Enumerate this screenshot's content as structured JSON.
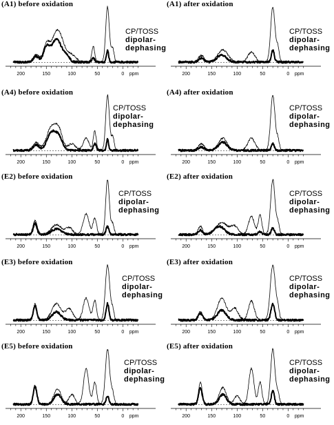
{
  "legend": {
    "line1": "CP/TOSS",
    "line2": "dipolar-",
    "line3": "dephasing"
  },
  "ppm_label": "ppm",
  "x_ticks": [
    200,
    150,
    100,
    50,
    0
  ],
  "chart_data": [
    {
      "type": "line",
      "title": "(A1) before oxidation",
      "x_axis": "ppm",
      "xlim": [
        230,
        -40
      ],
      "series": [
        {
          "peaks": [
            [
              170,
              0.13,
              9
            ],
            [
              128,
              0.58,
              16
            ],
            [
              150,
              0.28,
              8
            ],
            [
              100,
              0.12,
              12
            ],
            [
              58,
              0.28,
              4
            ],
            [
              30,
              1.0,
              5
            ],
            [
              20,
              0.25,
              4
            ]
          ]
        },
        {
          "peaks": [
            [
              170,
              0.1,
              8
            ],
            [
              130,
              0.42,
              14
            ],
            [
              150,
              0.25,
              8
            ],
            [
              58,
              0.07,
              4
            ],
            [
              30,
              0.22,
              3
            ],
            [
              110,
              0.1,
              8
            ]
          ]
        }
      ]
    },
    {
      "type": "line",
      "title": "(A1) after oxidation",
      "x_axis": "ppm",
      "xlim": [
        230,
        -40
      ],
      "series": [
        {
          "peaks": [
            [
              170,
              0.12,
              8
            ],
            [
              128,
              0.22,
              14
            ],
            [
              72,
              0.18,
              10
            ],
            [
              30,
              1.0,
              6
            ],
            [
              20,
              0.25,
              4
            ]
          ]
        },
        {
          "peaks": [
            [
              170,
              0.07,
              7
            ],
            [
              130,
              0.13,
              13
            ],
            [
              30,
              0.22,
              4
            ]
          ]
        }
      ]
    },
    {
      "type": "line",
      "title": "(A4) before oxidation",
      "x_axis": "ppm",
      "xlim": [
        230,
        -40
      ],
      "series": [
        {
          "peaks": [
            [
              170,
              0.14,
              9
            ],
            [
              140,
              0.42,
              13
            ],
            [
              125,
              0.32,
              10
            ],
            [
              100,
              0.12,
              10
            ],
            [
              72,
              0.22,
              8
            ],
            [
              55,
              0.35,
              4
            ],
            [
              30,
              1.0,
              5
            ],
            [
              20,
              0.25,
              4
            ]
          ]
        },
        {
          "peaks": [
            [
              170,
              0.1,
              8
            ],
            [
              140,
              0.32,
              12
            ],
            [
              125,
              0.22,
              10
            ],
            [
              55,
              0.12,
              4
            ],
            [
              30,
              0.2,
              3
            ]
          ]
        }
      ]
    },
    {
      "type": "line",
      "title": "(A4) after oxidation",
      "x_axis": "ppm",
      "xlim": [
        230,
        -40
      ],
      "series": [
        {
          "peaks": [
            [
              170,
              0.12,
              8
            ],
            [
              128,
              0.22,
              12
            ],
            [
              72,
              0.22,
              10
            ],
            [
              30,
              1.0,
              6
            ],
            [
              20,
              0.2,
              4
            ]
          ]
        },
        {
          "peaks": [
            [
              170,
              0.06,
              8
            ],
            [
              128,
              0.15,
              12
            ],
            [
              30,
              0.12,
              4
            ]
          ]
        }
      ]
    },
    {
      "type": "line",
      "title": "(E2) before oxidation",
      "x_axis": "ppm",
      "xlim": [
        230,
        -40
      ],
      "series": [
        {
          "peaks": [
            [
              172,
              0.25,
              6
            ],
            [
              130,
              0.18,
              14
            ],
            [
              105,
              0.12,
              10
            ],
            [
              72,
              0.38,
              8
            ],
            [
              55,
              0.3,
              5
            ],
            [
              30,
              1.0,
              5
            ],
            [
              20,
              0.2,
              4
            ]
          ]
        },
        {
          "peaks": [
            [
              172,
              0.2,
              5
            ],
            [
              130,
              0.1,
              14
            ],
            [
              30,
              0.15,
              4
            ]
          ]
        }
      ]
    },
    {
      "type": "line",
      "title": "(E2) after oxidation",
      "x_axis": "ppm",
      "xlim": [
        230,
        -40
      ],
      "series": [
        {
          "peaks": [
            [
              172,
              0.15,
              6
            ],
            [
              130,
              0.22,
              16
            ],
            [
              105,
              0.15,
              10
            ],
            [
              72,
              0.33,
              8
            ],
            [
              55,
              0.36,
              5
            ],
            [
              30,
              1.0,
              6
            ],
            [
              20,
              0.2,
              4
            ]
          ]
        },
        {
          "peaks": [
            [
              172,
              0.08,
              6
            ],
            [
              135,
              0.15,
              14
            ],
            [
              55,
              0.05,
              5
            ],
            [
              30,
              0.12,
              4
            ]
          ]
        }
      ]
    },
    {
      "type": "line",
      "title": "(E3) before oxidation",
      "x_axis": "ppm",
      "xlim": [
        230,
        -40
      ],
      "series": [
        {
          "peaks": [
            [
              172,
              0.3,
              5
            ],
            [
              130,
              0.3,
              13
            ],
            [
              105,
              0.2,
              10
            ],
            [
              72,
              0.4,
              8
            ],
            [
              55,
              0.35,
              5
            ],
            [
              30,
              1.0,
              6
            ],
            [
              20,
              0.2,
              4
            ]
          ]
        },
        {
          "peaks": [
            [
              172,
              0.25,
              5
            ],
            [
              130,
              0.15,
              12
            ],
            [
              30,
              0.3,
              4
            ]
          ]
        }
      ]
    },
    {
      "type": "line",
      "title": "(E3) after oxidation",
      "x_axis": "ppm",
      "xlim": [
        230,
        -40
      ],
      "series": [
        {
          "peaks": [
            [
              172,
              0.15,
              6
            ],
            [
              130,
              0.4,
              12
            ],
            [
              105,
              0.22,
              10
            ],
            [
              72,
              0.35,
              8
            ],
            [
              30,
              1.0,
              7
            ],
            [
              20,
              0.2,
              4
            ]
          ]
        },
        {
          "peaks": [
            [
              172,
              0.12,
              6
            ],
            [
              130,
              0.18,
              12
            ],
            [
              30,
              0.3,
              5
            ]
          ]
        }
      ]
    },
    {
      "type": "line",
      "title": "(E5) before oxidation",
      "x_axis": "ppm",
      "xlim": [
        230,
        -40
      ],
      "series": [
        {
          "peaks": [
            [
              172,
              0.35,
              5
            ],
            [
              128,
              0.28,
              10
            ],
            [
              100,
              0.18,
              8
            ],
            [
              72,
              0.65,
              7
            ],
            [
              55,
              0.4,
              5
            ],
            [
              30,
              1.0,
              6
            ],
            [
              20,
              0.2,
              4
            ]
          ]
        },
        {
          "peaks": [
            [
              172,
              0.32,
              5
            ],
            [
              128,
              0.18,
              10
            ],
            [
              30,
              0.15,
              4
            ]
          ]
        }
      ]
    },
    {
      "type": "line",
      "title": "(E5) after oxidation",
      "x_axis": "ppm",
      "xlim": [
        230,
        -40
      ],
      "series": [
        {
          "peaks": [
            [
              172,
              0.4,
              5
            ],
            [
              128,
              0.3,
              10
            ],
            [
              100,
              0.15,
              8
            ],
            [
              72,
              0.65,
              7
            ],
            [
              55,
              0.4,
              5
            ],
            [
              30,
              1.0,
              6
            ],
            [
              20,
              0.2,
              4
            ]
          ]
        },
        {
          "peaks": [
            [
              172,
              0.3,
              5
            ],
            [
              128,
              0.18,
              10
            ],
            [
              30,
              0.25,
              4
            ]
          ]
        }
      ]
    }
  ]
}
